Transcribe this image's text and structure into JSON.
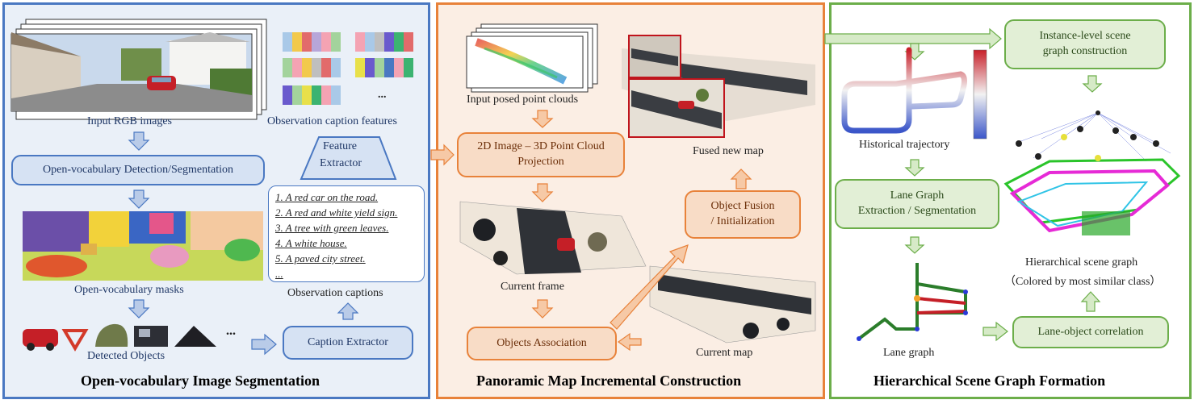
{
  "panels": {
    "segmentation": {
      "title": "Open-vocabulary Image Segmentation",
      "input_label": "Input RGB images",
      "detector_box": "Open-vocabulary Detection/Segmentation",
      "masks_label": "Open-vocabulary masks",
      "objects_label": "Detected Objects",
      "objects_ellipsis": "...",
      "caption_extractor": "Caption Extractor",
      "observation_captions_label": "Observation captions",
      "feature_extractor_line1": "Feature",
      "feature_extractor_line2": "Extractor",
      "features_label": "Observation caption features",
      "features_ellipsis": "...",
      "captions": [
        "1. A red car on the road.",
        "2. A red and white yield sign.",
        "3. A tree with green leaves.",
        "4. A white house.",
        "5. A paved city street.",
        "..."
      ]
    },
    "panoramic": {
      "title": "Panoramic Map Incremental Construction",
      "point_clouds_label": "Input posed point clouds",
      "projection_line1": "2D Image – 3D Point Cloud",
      "projection_line2": "Projection",
      "current_frame_label": "Current frame",
      "association_box": "Objects Association",
      "current_map_label": "Current map",
      "fusion_line1": "Object Fusion",
      "fusion_line2": "/ Initialization",
      "fused_map_label": "Fused new map"
    },
    "scene_graph": {
      "title": "Hierarchical Scene Graph Formation",
      "trajectory_label": "Historical trajectory",
      "lane_box_line1": "Lane Graph",
      "lane_box_line2": "Extraction / Segmentation",
      "lane_graph_label": "Lane graph",
      "instance_box_line1": "Instance-level scene",
      "instance_box_line2": "graph construction",
      "hsg_label_line1": "Hierarchical scene graph",
      "hsg_label_line2": "（Colored by most similar class）",
      "correlation_box": "Lane-object correlation"
    }
  },
  "colors": {
    "blue_border": "#4a78c2",
    "orange_border": "#e8823a",
    "green_border": "#6cae4a"
  }
}
